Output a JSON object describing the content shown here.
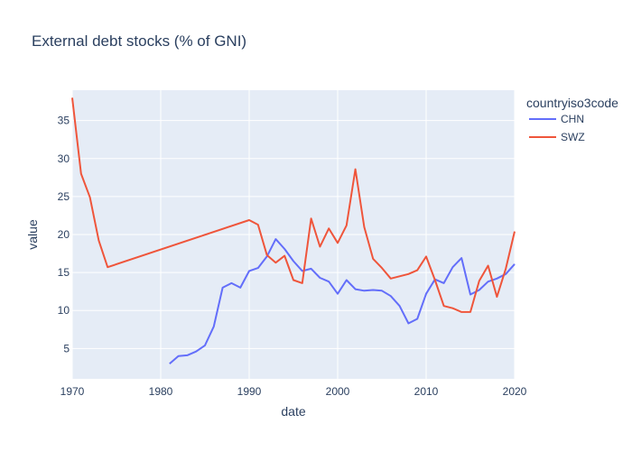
{
  "chart_data": {
    "type": "line",
    "title": "External debt stocks (% of GNI)",
    "xlabel": "date",
    "ylabel": "value",
    "xlim": [
      1970,
      2020
    ],
    "ylim": [
      1,
      39
    ],
    "x_ticks": [
      1970,
      1980,
      1990,
      2000,
      2010,
      2020
    ],
    "y_ticks": [
      5,
      10,
      15,
      20,
      25,
      30,
      35
    ],
    "grid": true,
    "legend_title": "countryiso3code",
    "legend_position": "top-right",
    "background_color": "#e5ecf6",
    "series": [
      {
        "name": "CHN",
        "color": "#636efa",
        "x": [
          1981,
          1982,
          1983,
          1984,
          1985,
          1986,
          1987,
          1988,
          1989,
          1990,
          1991,
          1992,
          1993,
          1994,
          1995,
          1996,
          1997,
          1998,
          1999,
          2000,
          2001,
          2002,
          2003,
          2004,
          2005,
          2006,
          2007,
          2008,
          2009,
          2010,
          2011,
          2012,
          2013,
          2014,
          2015,
          2016,
          2017,
          2018,
          2019,
          2020
        ],
        "y": [
          3.0,
          4.0,
          4.1,
          4.6,
          5.4,
          7.9,
          13.0,
          13.6,
          13.0,
          15.2,
          15.6,
          17.1,
          19.4,
          18.1,
          16.5,
          15.2,
          15.5,
          14.3,
          13.8,
          12.2,
          14.0,
          12.8,
          12.6,
          12.7,
          12.6,
          11.9,
          10.6,
          8.3,
          8.9,
          12.2,
          14.1,
          13.6,
          15.7,
          16.9,
          12.1,
          12.7,
          13.8,
          14.2,
          14.8,
          16.1
        ]
      },
      {
        "name": "SWZ",
        "color": "#ef553b",
        "x": [
          1970,
          1971,
          1972,
          1973,
          1974,
          1990,
          1991,
          1992,
          1993,
          1994,
          1995,
          1996,
          1997,
          1998,
          1999,
          2000,
          2001,
          2002,
          2003,
          2004,
          2005,
          2006,
          2007,
          2008,
          2009,
          2010,
          2011,
          2012,
          2013,
          2014,
          2015,
          2016,
          2017,
          2018,
          2019,
          2020
        ],
        "y": [
          38.0,
          28.0,
          24.9,
          19.2,
          15.7,
          21.9,
          21.3,
          17.3,
          16.3,
          17.2,
          14.0,
          13.6,
          22.1,
          18.4,
          20.8,
          18.9,
          21.2,
          28.6,
          21.0,
          16.8,
          15.6,
          14.2,
          14.5,
          14.8,
          15.3,
          17.1,
          14.0,
          10.6,
          10.3,
          9.8,
          9.8,
          13.9,
          15.9,
          11.8,
          15.5,
          20.4
        ]
      }
    ]
  }
}
